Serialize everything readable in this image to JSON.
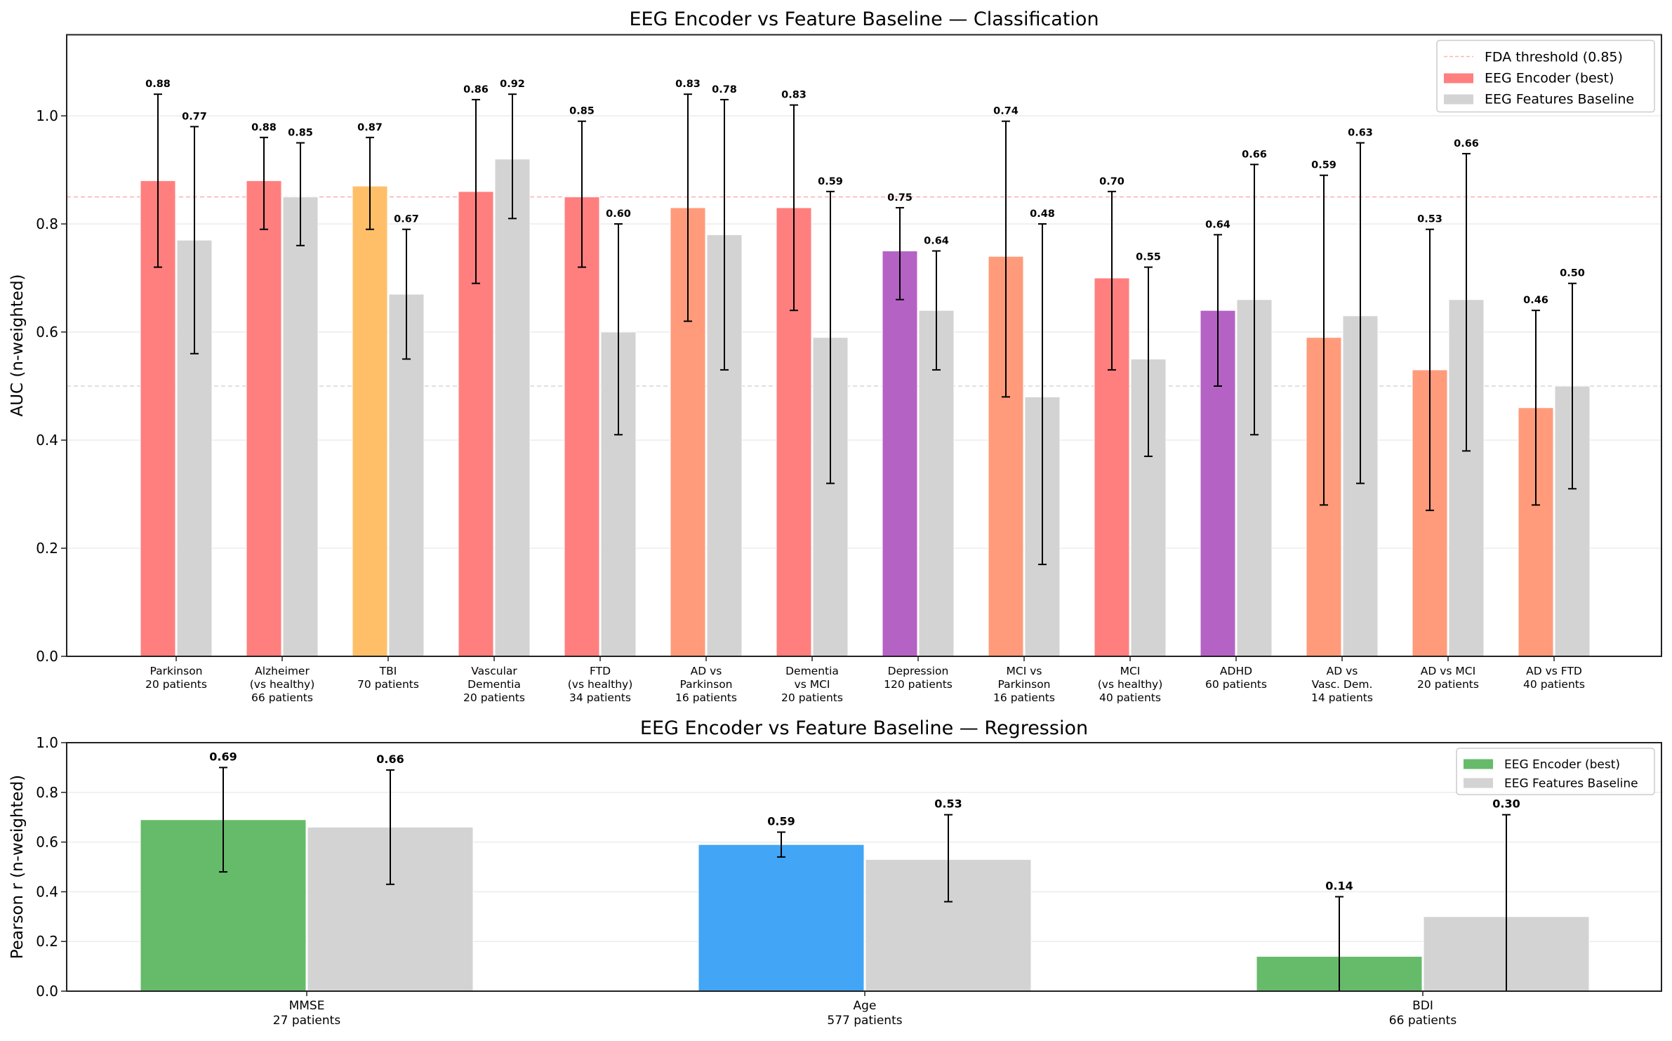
{
  "chart_data": [
    {
      "type": "bar",
      "title": "EEG Encoder vs Feature Baseline — Classification",
      "xlabel": "",
      "ylabel": "AUC (n-weighted)",
      "ylim": [
        0,
        1.15
      ],
      "yticks": [
        "0.0",
        "0.2",
        "0.4",
        "0.6",
        "0.8",
        "1.0"
      ],
      "grid": true,
      "legend_position": "top-right",
      "reference_lines": [
        {
          "name": "FDA threshold (0.85)",
          "value": 0.85,
          "color": "#ff8c8c",
          "style": "dashed",
          "in_legend": true
        },
        {
          "name": "chance",
          "value": 0.5,
          "color": "#cccccc",
          "style": "dashed",
          "in_legend": false
        }
      ],
      "legend": [
        {
          "label": "FDA threshold (0.85)",
          "kind": "dashed-line",
          "color": "#ffb3b3"
        },
        {
          "label": "EEG Encoder (best)",
          "kind": "patch",
          "color": "#ff7f7f"
        },
        {
          "label": "EEG Features Baseline",
          "kind": "patch",
          "color": "#d3d3d3"
        }
      ],
      "categories": [
        [
          "Parkinson",
          "20 patients"
        ],
        [
          "Alzheimer",
          "(vs healthy)",
          "66 patients"
        ],
        [
          "TBI",
          "70 patients"
        ],
        [
          "Vascular",
          "Dementia",
          "20 patients"
        ],
        [
          "FTD",
          "(vs healthy)",
          "34 patients"
        ],
        [
          "AD vs",
          "Parkinson",
          "16 patients"
        ],
        [
          "Dementia",
          "vs MCI",
          "20 patients"
        ],
        [
          "Depression",
          "120 patients"
        ],
        [
          "MCI vs",
          "Parkinson",
          "16 patients"
        ],
        [
          "MCI",
          "(vs healthy)",
          "40 patients"
        ],
        [
          "ADHD",
          "60 patients"
        ],
        [
          "AD vs",
          "Vasc. Dem.",
          "14 patients"
        ],
        [
          "AD vs MCI",
          "20 patients"
        ],
        [
          "AD vs FTD",
          "40 patients"
        ]
      ],
      "series": [
        {
          "name": "EEG Encoder (best)",
          "values": [
            0.88,
            0.88,
            0.87,
            0.86,
            0.85,
            0.83,
            0.83,
            0.75,
            0.74,
            0.7,
            0.64,
            0.59,
            0.53,
            0.46
          ],
          "labels": [
            "0.88",
            "0.88",
            "0.87",
            "0.86",
            "0.85",
            "0.83",
            "0.83",
            "0.75",
            "0.74",
            "0.70",
            "0.64",
            "0.59",
            "0.53",
            "0.46"
          ],
          "err_low": [
            0.72,
            0.79,
            0.79,
            0.69,
            0.72,
            0.62,
            0.64,
            0.66,
            0.48,
            0.53,
            0.5,
            0.28,
            0.27,
            0.28
          ],
          "err_high": [
            1.04,
            0.96,
            0.96,
            1.03,
            0.99,
            1.04,
            1.02,
            0.83,
            0.99,
            0.86,
            0.78,
            0.89,
            0.79,
            0.64
          ],
          "colors": [
            "#ff7f7f",
            "#ff7f7f",
            "#ffbf69",
            "#ff7f7f",
            "#ff7f7f",
            "#ff9b7b",
            "#ff7f7f",
            "#b463c4",
            "#ff9b7b",
            "#ff7f7f",
            "#b463c4",
            "#ff9b7b",
            "#ff9b7b",
            "#ff9b7b"
          ]
        },
        {
          "name": "EEG Features Baseline",
          "values": [
            0.77,
            0.85,
            0.67,
            0.92,
            0.6,
            0.78,
            0.59,
            0.64,
            0.48,
            0.55,
            0.66,
            0.63,
            0.66,
            0.5
          ],
          "labels": [
            "0.77",
            "0.85",
            "0.67",
            "0.92",
            "0.60",
            "0.78",
            "0.59",
            "0.64",
            "0.48",
            "0.55",
            "0.66",
            "0.63",
            "0.66",
            "0.50"
          ],
          "err_low": [
            0.56,
            0.76,
            0.55,
            0.81,
            0.41,
            0.53,
            0.32,
            0.53,
            0.17,
            0.37,
            0.41,
            0.32,
            0.38,
            0.31
          ],
          "err_high": [
            0.98,
            0.95,
            0.79,
            1.04,
            0.8,
            1.03,
            0.86,
            0.75,
            0.8,
            0.72,
            0.91,
            0.95,
            0.93,
            0.69
          ],
          "colors": [
            "#d3d3d3"
          ]
        }
      ]
    },
    {
      "type": "bar",
      "title": "EEG Encoder vs Feature Baseline — Regression",
      "xlabel": "",
      "ylabel": "Pearson r (n-weighted)",
      "ylim": [
        0,
        1.0
      ],
      "yticks": [
        "0.0",
        "0.2",
        "0.4",
        "0.6",
        "0.8",
        "1.0"
      ],
      "grid": true,
      "legend_position": "top-right",
      "legend": [
        {
          "label": "EEG Encoder (best)",
          "kind": "patch",
          "color": "#66bb6a"
        },
        {
          "label": "EEG Features Baseline",
          "kind": "patch",
          "color": "#d3d3d3"
        }
      ],
      "categories": [
        [
          "MMSE",
          "27 patients"
        ],
        [
          "Age",
          "577 patients"
        ],
        [
          "BDI",
          "66 patients"
        ]
      ],
      "series": [
        {
          "name": "EEG Encoder (best)",
          "values": [
            0.69,
            0.59,
            0.14
          ],
          "labels": [
            "0.69",
            "0.59",
            "0.14"
          ],
          "err_low": [
            0.48,
            0.54,
            0.0
          ],
          "err_high": [
            0.9,
            0.64,
            0.38
          ],
          "colors": [
            "#66bb6a",
            "#42a5f5",
            "#66bb6a"
          ]
        },
        {
          "name": "EEG Features Baseline",
          "values": [
            0.66,
            0.53,
            0.3
          ],
          "labels": [
            "0.66",
            "0.53",
            "0.30"
          ],
          "err_low": [
            0.43,
            0.36,
            0.0
          ],
          "err_high": [
            0.89,
            0.71,
            0.71
          ],
          "colors": [
            "#d3d3d3"
          ]
        }
      ]
    }
  ]
}
